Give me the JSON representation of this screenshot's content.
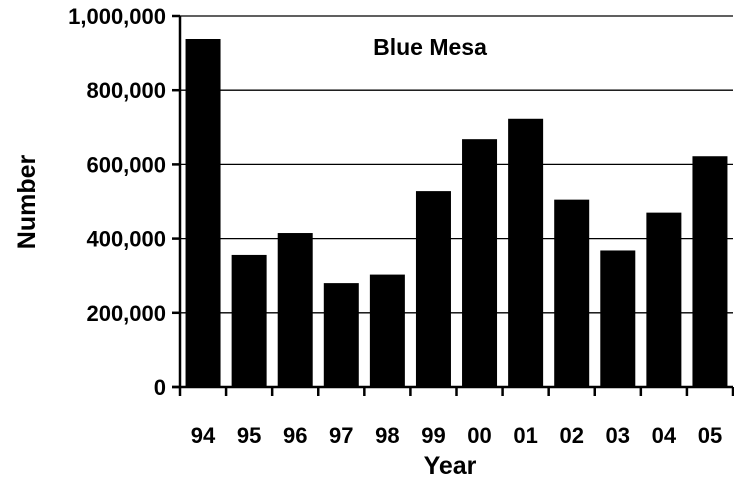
{
  "chart_data": {
    "type": "bar",
    "title": "Blue Mesa",
    "xlabel": "Year",
    "ylabel": "Number",
    "categories": [
      "94",
      "95",
      "96",
      "97",
      "98",
      "99",
      "00",
      "01",
      "02",
      "03",
      "04",
      "05"
    ],
    "values": [
      938000,
      356000,
      415000,
      280000,
      303000,
      528000,
      668000,
      723000,
      505000,
      368000,
      470000,
      622000
    ],
    "ylim": [
      0,
      1000000
    ],
    "yticks": [
      0,
      200000,
      400000,
      600000,
      800000,
      1000000
    ],
    "ytick_labels": [
      "0",
      "200,000",
      "400,000",
      "600,000",
      "800,000",
      "1,000,000"
    ],
    "grid": "horizontal",
    "legend": "none",
    "colors": {
      "bar": "#000000",
      "grid": "#000000",
      "axis": "#000000",
      "background": "#ffffff"
    }
  }
}
